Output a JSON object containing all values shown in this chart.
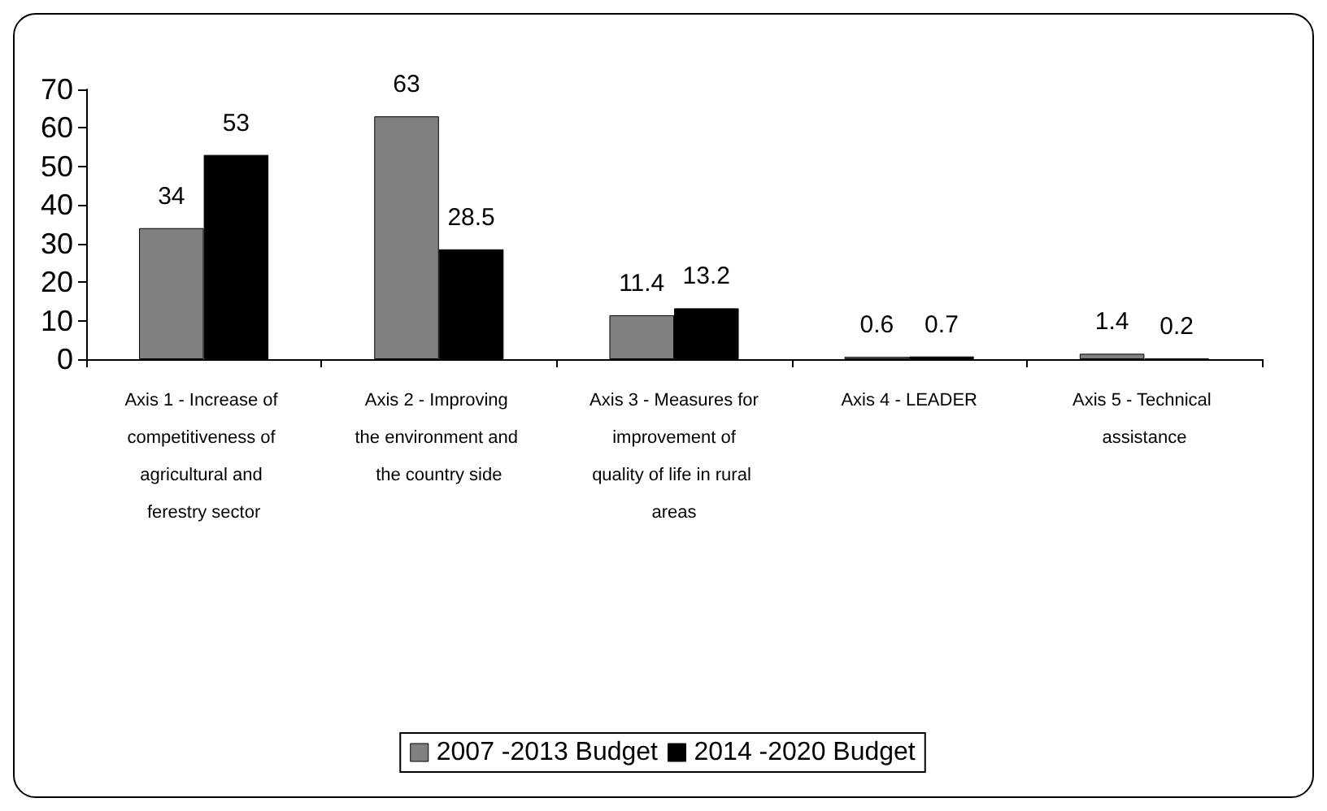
{
  "chart_data": {
    "type": "bar",
    "categories": [
      "Axis 1 - Increase of competitiveness of agricultural and ferestry sector",
      "Axis 2 - Improving the environment and the country side",
      "Axis 3 - Measures for improvement of quality of life in rural areas",
      "Axis 4 - LEADER",
      "Axis 5 - Technical assistance"
    ],
    "series": [
      {
        "name": "2007 -2013 Budget",
        "color": "#808080",
        "values": [
          34,
          63,
          11.4,
          0.6,
          1.4
        ]
      },
      {
        "name": "2014 -2020 Budget",
        "color": "#000000",
        "values": [
          53,
          28.5,
          13.2,
          0.7,
          0.2
        ]
      }
    ],
    "ylim": [
      0,
      70
    ],
    "yticks": [
      0,
      10,
      20,
      30,
      40,
      50,
      60,
      70
    ],
    "grid": false,
    "legend": "bottom",
    "data_labels": true
  }
}
